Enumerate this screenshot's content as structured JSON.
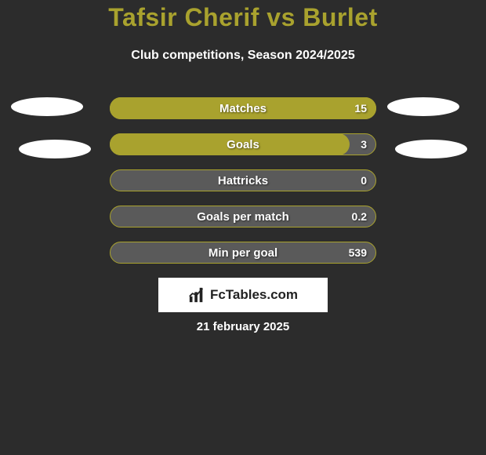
{
  "title": {
    "text": "Tafsir Cherif vs Burlet",
    "color": "#a9a22e",
    "fontsize": 32
  },
  "subtitle": {
    "text": "Club competitions, Season 2024/2025",
    "color": "#ffffff",
    "fontsize": 16
  },
  "background_color": "#2c2c2c",
  "row_top_start": 124,
  "row_spacing": 46,
  "bars": [
    {
      "label": "Matches",
      "value": "15",
      "fill_pct": 100,
      "bg": "#a9a22e",
      "fill": "#a9a22e"
    },
    {
      "label": "Goals",
      "value": "3",
      "fill_pct": 90,
      "bg": "#5a5a5a",
      "fill": "#a9a22e"
    },
    {
      "label": "Hattricks",
      "value": "0",
      "fill_pct": 0,
      "bg": "#5a5a5a",
      "fill": "#a9a22e"
    },
    {
      "label": "Goals per match",
      "value": "0.2",
      "fill_pct": 0,
      "bg": "#5a5a5a",
      "fill": "#a9a22e"
    },
    {
      "label": "Min per goal",
      "value": "539",
      "fill_pct": 0,
      "bg": "#5a5a5a",
      "fill": "#a9a22e"
    }
  ],
  "ovals_color": "#ffffff",
  "logo": {
    "brand": "FcTables.com",
    "text_color": "#222222",
    "bg": "#ffffff"
  },
  "date": {
    "text": "21 february 2025",
    "color": "#ffffff"
  }
}
